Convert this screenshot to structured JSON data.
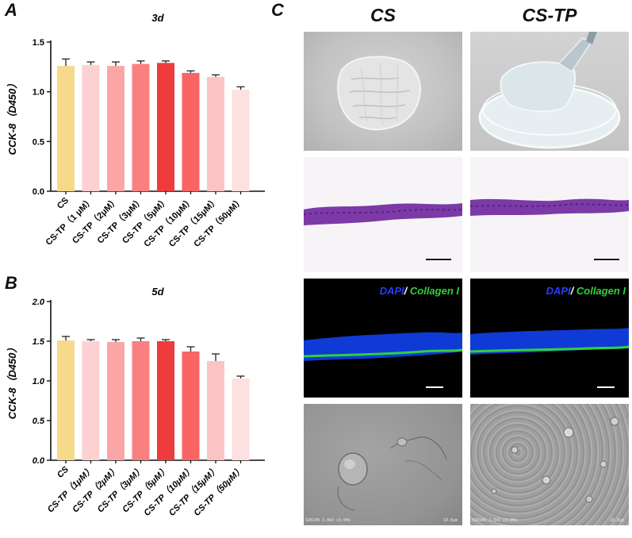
{
  "panel_a": {
    "letter": "A",
    "chart_data": {
      "type": "bar",
      "title": "3d",
      "ylabel": "CCK-8（D450）",
      "ylim": [
        0,
        1.5
      ],
      "yticks": [
        0.0,
        0.5,
        1.0,
        1.5
      ],
      "ytick_labels": [
        "0.0",
        "0.5",
        "1.0",
        "1.5"
      ],
      "categories": [
        "CS",
        "CS-TP（1 μM）",
        "CS-TP（2μM）",
        "CS-TP（3μM）",
        "CS-TP（5μM）",
        "CS-TP（10μM）",
        "CS-TP（15μM）",
        "CS-TP（50μM）"
      ],
      "values": [
        1.26,
        1.27,
        1.26,
        1.28,
        1.29,
        1.19,
        1.15,
        1.02
      ],
      "errors": [
        0.07,
        0.03,
        0.04,
        0.03,
        0.02,
        0.02,
        0.02,
        0.03
      ],
      "colors": [
        "#f6d98a",
        "#fdd1d1",
        "#fba6a6",
        "#f98080",
        "#ee3b3b",
        "#f96565",
        "#fbc3c3",
        "#fde0e0"
      ],
      "grid": false
    }
  },
  "panel_b": {
    "letter": "B",
    "chart_data": {
      "type": "bar",
      "title": "5d",
      "ylabel": "CCK-8（D450）",
      "ylim": [
        0,
        2.0
      ],
      "yticks": [
        0.0,
        0.5,
        1.0,
        1.5,
        2.0
      ],
      "ytick_labels": [
        "0.0",
        "0.5",
        "1.0",
        "1.5",
        "2.0"
      ],
      "categories": [
        "CS",
        "CS-TP（1μM）",
        "CS-TP（2μM）",
        "CS-TP（3μM）",
        "CS-TP（5μM）",
        "CS-TP（10μM）",
        "CS-TP（15μM）",
        "CS-TP（50μM）"
      ],
      "values": [
        1.51,
        1.5,
        1.49,
        1.5,
        1.5,
        1.37,
        1.25,
        1.03
      ],
      "errors": [
        0.05,
        0.02,
        0.03,
        0.04,
        0.02,
        0.06,
        0.09,
        0.03
      ],
      "colors": [
        "#f6d98a",
        "#fdd1d1",
        "#fba6a6",
        "#f98080",
        "#ee3b3b",
        "#f96565",
        "#fbc3c3",
        "#fde0e0"
      ],
      "grid": false
    }
  },
  "panel_c": {
    "letter": "C",
    "col_titles": [
      "CS",
      "CS-TP"
    ],
    "legend": {
      "dapi": "DAPI",
      "slash": "/",
      "collagen": " Collagen I"
    },
    "sem_info": {
      "left_a": "SU8100 3.0kV x3.00k",
      "left_b": "10.0μm",
      "right_a": "SU8100 3.0kV x3.00k",
      "right_b": "10.0μm"
    }
  }
}
